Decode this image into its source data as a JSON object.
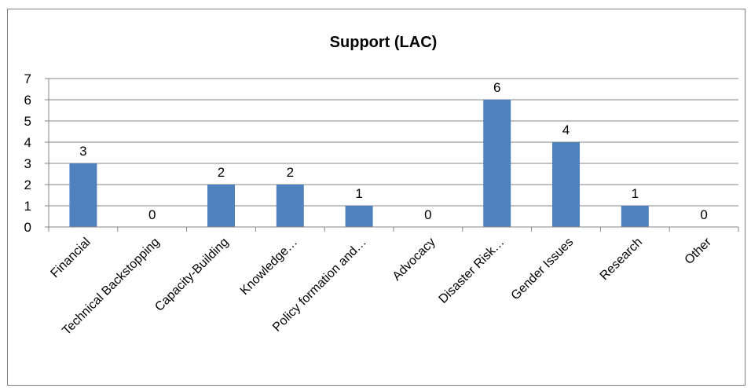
{
  "chart_data": {
    "type": "bar",
    "title": "Support (LAC)",
    "categories": [
      "Financial",
      "Technical Backstopping",
      "Capacity-Building",
      "Knowledge…",
      "Policy formation and…",
      "Advocacy",
      "Disaster Risk…",
      "Gender Issues",
      "Research",
      "Other"
    ],
    "values": [
      3,
      0,
      2,
      2,
      1,
      0,
      6,
      4,
      1,
      0
    ],
    "xlabel": "",
    "ylabel": "",
    "ylim": [
      0,
      7
    ],
    "yticks": [
      0,
      1,
      2,
      3,
      4,
      5,
      6,
      7
    ],
    "grid": true,
    "legend": "none",
    "data_labels": true,
    "bar_color": "#4f81bd",
    "grid_color": "#868686"
  }
}
